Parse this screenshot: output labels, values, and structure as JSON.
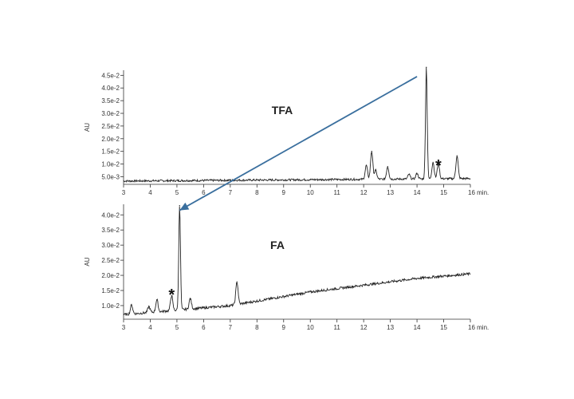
{
  "chart_data": [
    {
      "type": "line",
      "panel": "top",
      "label": "TFA",
      "ylabel": "AU",
      "xlim": [
        3,
        16
      ],
      "ylim": [
        0.002,
        0.047
      ],
      "xticks": [
        "3",
        "4",
        "5",
        "6",
        "7",
        "8",
        "9",
        "10",
        "11",
        "12",
        "13",
        "14",
        "15",
        "16 min."
      ],
      "yticks": [
        {
          "v": 0.005,
          "t": "5.0e-3"
        },
        {
          "v": 0.01,
          "t": "1.0e-2"
        },
        {
          "v": 0.015,
          "t": "1.5e-2"
        },
        {
          "v": 0.02,
          "t": "2.0e-2"
        },
        {
          "v": 0.025,
          "t": "2.5e-2"
        },
        {
          "v": 0.03,
          "t": "3.0e-2"
        },
        {
          "v": 0.035,
          "t": "3.5e-2"
        },
        {
          "v": 0.04,
          "t": "4.0e-2"
        },
        {
          "v": 0.045,
          "t": "4.5e-2"
        }
      ],
      "baseline": [
        [
          3,
          0.0033
        ],
        [
          16,
          0.0043
        ]
      ],
      "noise": 0.0004,
      "peaks": [
        {
          "x": 12.1,
          "h": 0.0055
        },
        {
          "x": 12.3,
          "h": 0.011
        },
        {
          "x": 12.45,
          "h": 0.0035
        },
        {
          "x": 12.9,
          "h": 0.005
        },
        {
          "x": 13.7,
          "h": 0.0018
        },
        {
          "x": 14.0,
          "h": 0.0022
        },
        {
          "x": 14.35,
          "h": 0.044
        },
        {
          "x": 14.6,
          "h": 0.0065
        },
        {
          "x": 14.8,
          "h": 0.006
        },
        {
          "x": 15.5,
          "h": 0.009
        }
      ],
      "marker": {
        "text": "*",
        "x": 14.8,
        "y": 0.0105
      }
    },
    {
      "type": "line",
      "panel": "bottom",
      "label": "FA",
      "ylabel": "AU",
      "xlim": [
        3,
        16
      ],
      "ylim": [
        0.0055,
        0.0435
      ],
      "xticks": [
        "3",
        "4",
        "5",
        "6",
        "7",
        "8",
        "9",
        "10",
        "11",
        "12",
        "13",
        "14",
        "15",
        "16 min."
      ],
      "yticks": [
        {
          "v": 0.01,
          "t": "1.0e-2"
        },
        {
          "v": 0.015,
          "t": "1.5e-2"
        },
        {
          "v": 0.02,
          "t": "2.0e-2"
        },
        {
          "v": 0.025,
          "t": "2.5e-2"
        },
        {
          "v": 0.03,
          "t": "3.0e-2"
        },
        {
          "v": 0.035,
          "t": "3.5e-2"
        },
        {
          "v": 0.04,
          "t": "4.0e-2"
        }
      ],
      "baseline": [
        [
          3,
          0.007
        ],
        [
          5,
          0.0085
        ],
        [
          7,
          0.01
        ],
        [
          10,
          0.0145
        ],
        [
          14,
          0.019
        ],
        [
          16,
          0.0205
        ]
      ],
      "noise": 0.0004,
      "peaks": [
        {
          "x": 3.3,
          "h": 0.003
        },
        {
          "x": 3.95,
          "h": 0.002
        },
        {
          "x": 4.25,
          "h": 0.004
        },
        {
          "x": 4.8,
          "h": 0.005
        },
        {
          "x": 5.1,
          "h": 0.0345
        },
        {
          "x": 5.5,
          "h": 0.0035
        },
        {
          "x": 7.25,
          "h": 0.0075
        }
      ],
      "marker": {
        "text": "*",
        "x": 4.8,
        "y": 0.0145
      }
    }
  ],
  "arrow": {
    "from": {
      "x": 14.0,
      "y": 0.0445
    },
    "to": {
      "x": 5.1,
      "y": 0.0415
    },
    "color": "#3a6f9e"
  }
}
